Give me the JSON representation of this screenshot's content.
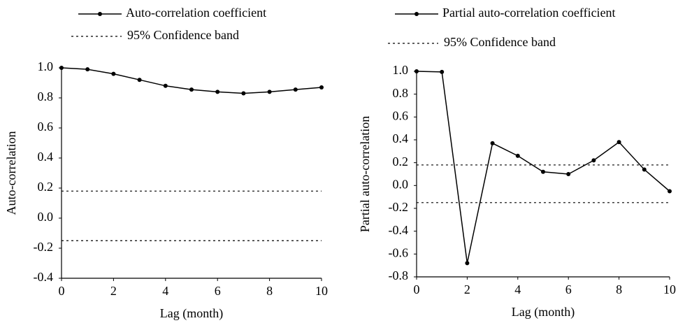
{
  "chart_data": [
    {
      "type": "line",
      "ylabel": "Auto-correlation",
      "xlabel": "Lag (month)",
      "x": [
        0,
        1,
        2,
        3,
        4,
        5,
        6,
        7,
        8,
        9,
        10
      ],
      "series": [
        {
          "name": "Auto-correlation coefficient",
          "color": "#000000",
          "values": [
            1.0,
            0.99,
            0.96,
            0.92,
            0.88,
            0.855,
            0.84,
            0.83,
            0.84,
            0.855,
            0.87
          ]
        }
      ],
      "band": {
        "name": "95% Confidence band",
        "values": [
          0.18,
          -0.15
        ]
      },
      "xlim": [
        0,
        10
      ],
      "xticks": [
        0,
        2,
        4,
        6,
        8,
        10
      ],
      "ylim": [
        -0.4,
        1.0
      ],
      "yticks": [
        -0.4,
        -0.2,
        {
          "value": 0,
          "label": "0.0"
        },
        0.2,
        0.4,
        0.6,
        0.8,
        {
          "value": 1,
          "label": "1.0"
        }
      ]
    },
    {
      "type": "line",
      "ylabel": "Partial auto-correlation",
      "xlabel": "Lag (month)",
      "x": [
        0,
        1,
        2,
        3,
        4,
        5,
        6,
        7,
        8,
        9,
        10
      ],
      "series": [
        {
          "name": "Partial auto-correlation coefficient",
          "color": "#000000",
          "values": [
            1.0,
            0.995,
            -0.68,
            0.37,
            0.26,
            0.12,
            0.1,
            0.22,
            0.38,
            0.14,
            -0.05
          ]
        }
      ],
      "band": {
        "name": "95% Confidence band",
        "values": [
          0.18,
          -0.15
        ]
      },
      "xlim": [
        0,
        10
      ],
      "xticks": [
        0,
        2,
        4,
        6,
        8,
        10
      ],
      "ylim": [
        -0.8,
        1.0
      ],
      "yticks": [
        -0.8,
        -0.6,
        -0.4,
        -0.2,
        {
          "value": 0,
          "label": "0.0"
        },
        0.2,
        0.4,
        0.6,
        0.8,
        {
          "value": 1,
          "label": "1.0"
        }
      ]
    }
  ]
}
